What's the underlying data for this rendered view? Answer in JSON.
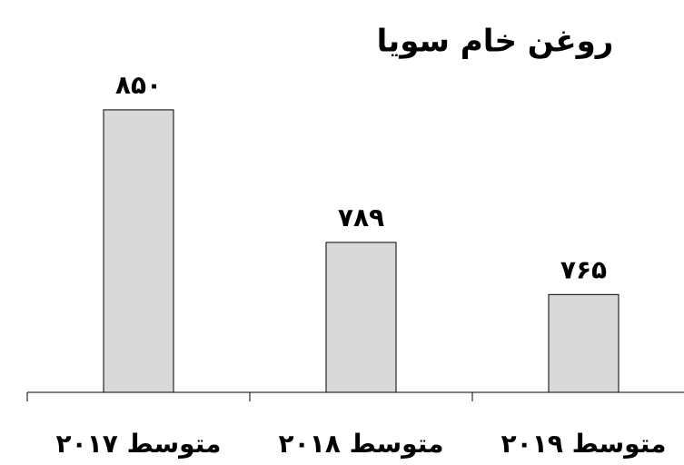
{
  "chart_data": {
    "type": "bar",
    "title": "روغن خام سویا",
    "categories": [
      "متوسط ۲۰۱۷",
      "متوسط ۲۰۱۸",
      "متوسط ۲۰۱۹"
    ],
    "values": [
      850,
      789,
      765
    ],
    "value_labels": [
      "۸۵۰",
      "۷۸۹",
      "۷۶۵"
    ],
    "color": "#d9d9d9",
    "ylim": [
      720,
      860
    ]
  }
}
